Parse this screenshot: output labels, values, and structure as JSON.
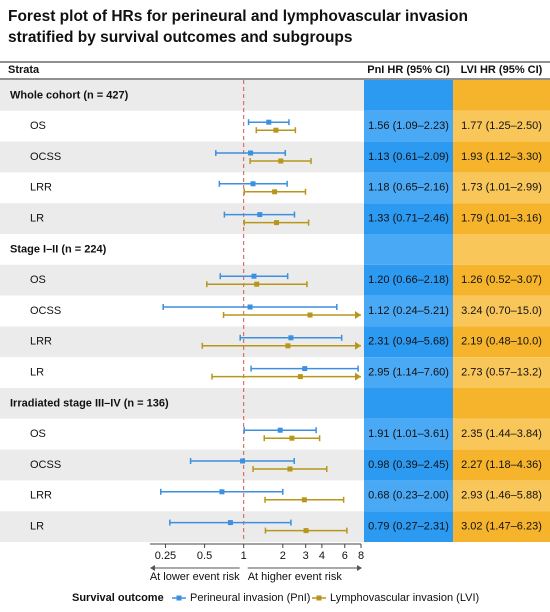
{
  "chart_data": {
    "type": "forest",
    "title": "Forest plot of HRs for perineural and lymphovascular invasion stratified by survival outcomes and subgroups",
    "strata_label": "Strata",
    "columns": [
      "PnI HR (95% CI)",
      "LVI HR (95% CI)"
    ],
    "series": [
      {
        "name": "Perineural invasion (PnI)",
        "color": "#3d8fe0",
        "column_colors": [
          "#2d9af2",
          "#4aa9f5"
        ]
      },
      {
        "name": "Lymphovascular invasion (LVI)",
        "color": "#b8961a",
        "column_colors": [
          "#f6b42c",
          "#f9c65a"
        ]
      }
    ],
    "legend_title": "Survival outcome",
    "xlim": [
      0.19,
      8
    ],
    "xticks": [
      0.25,
      0.5,
      1,
      2,
      3,
      4,
      6,
      8
    ],
    "x_scale": "log",
    "reference": 1,
    "x_left_label": "At lower event risk",
    "x_right_label": "At higher event risk",
    "groups": [
      {
        "name": "Whole cohort (n = 427)",
        "categories": [
          "OS",
          "OCSS",
          "LRR",
          "LR"
        ],
        "series": [
          {
            "values": [
              1.56,
              1.13,
              1.18,
              1.33
            ],
            "lower": [
              1.09,
              0.61,
              0.65,
              0.71
            ],
            "upper": [
              2.23,
              2.09,
              2.16,
              2.46
            ],
            "value_labels": [
              "1.56 (1.09–2.23)",
              "1.13 (0.61–2.09)",
              "1.18 (0.65–2.16)",
              "1.33 (0.71–2.46)"
            ]
          },
          {
            "values": [
              1.77,
              1.93,
              1.73,
              1.79
            ],
            "lower": [
              1.25,
              1.12,
              1.01,
              1.01
            ],
            "upper": [
              2.5,
              3.3,
              2.99,
              3.16
            ],
            "value_labels": [
              "1.77 (1.25–2.50)",
              "1.93 (1.12–3.30)",
              "1.73 (1.01–2.99)",
              "1.79 (1.01–3.16)"
            ]
          }
        ]
      },
      {
        "name": "Stage I–II (n = 224)",
        "categories": [
          "OS",
          "OCSS",
          "LRR",
          "LR"
        ],
        "series": [
          {
            "values": [
              1.2,
              1.12,
              2.31,
              2.95
            ],
            "lower": [
              0.66,
              0.24,
              0.94,
              1.14
            ],
            "upper": [
              2.18,
              5.21,
              5.68,
              7.6
            ],
            "value_labels": [
              "1.20 (0.66–2.18)",
              "1.12 (0.24–5.21)",
              "2.31 (0.94–5.68)",
              "2.95 (1.14–7.60)"
            ]
          },
          {
            "values": [
              1.26,
              3.24,
              2.19,
              2.73
            ],
            "lower": [
              0.52,
              0.7,
              0.48,
              0.57
            ],
            "upper": [
              3.07,
              15.0,
              10.0,
              13.2
            ],
            "value_labels": [
              "1.26 (0.52–3.07)",
              "3.24 (0.70–15.0)",
              "2.19 (0.48–10.0)",
              "2.73 (0.57–13.2)"
            ]
          }
        ]
      },
      {
        "name": "Irradiated stage III–IV (n = 136)",
        "categories": [
          "OS",
          "OCSS",
          "LRR",
          "LR"
        ],
        "series": [
          {
            "values": [
              1.91,
              0.98,
              0.68,
              0.79
            ],
            "lower": [
              1.01,
              0.39,
              0.23,
              0.27
            ],
            "upper": [
              3.61,
              2.45,
              2.0,
              2.31
            ],
            "value_labels": [
              "1.91 (1.01–3.61)",
              "0.98 (0.39–2.45)",
              "0.68 (0.23–2.00)",
              "0.79 (0.27–2.31)"
            ]
          },
          {
            "values": [
              2.35,
              2.27,
              2.93,
              3.02
            ],
            "lower": [
              1.44,
              1.18,
              1.46,
              1.47
            ],
            "upper": [
              3.84,
              4.36,
              5.88,
              6.23
            ],
            "value_labels": [
              "2.35 (1.44–3.84)",
              "2.27 (1.18–4.36)",
              "2.93 (1.46–5.88)",
              "3.02 (1.47–6.23)"
            ]
          }
        ]
      }
    ]
  }
}
